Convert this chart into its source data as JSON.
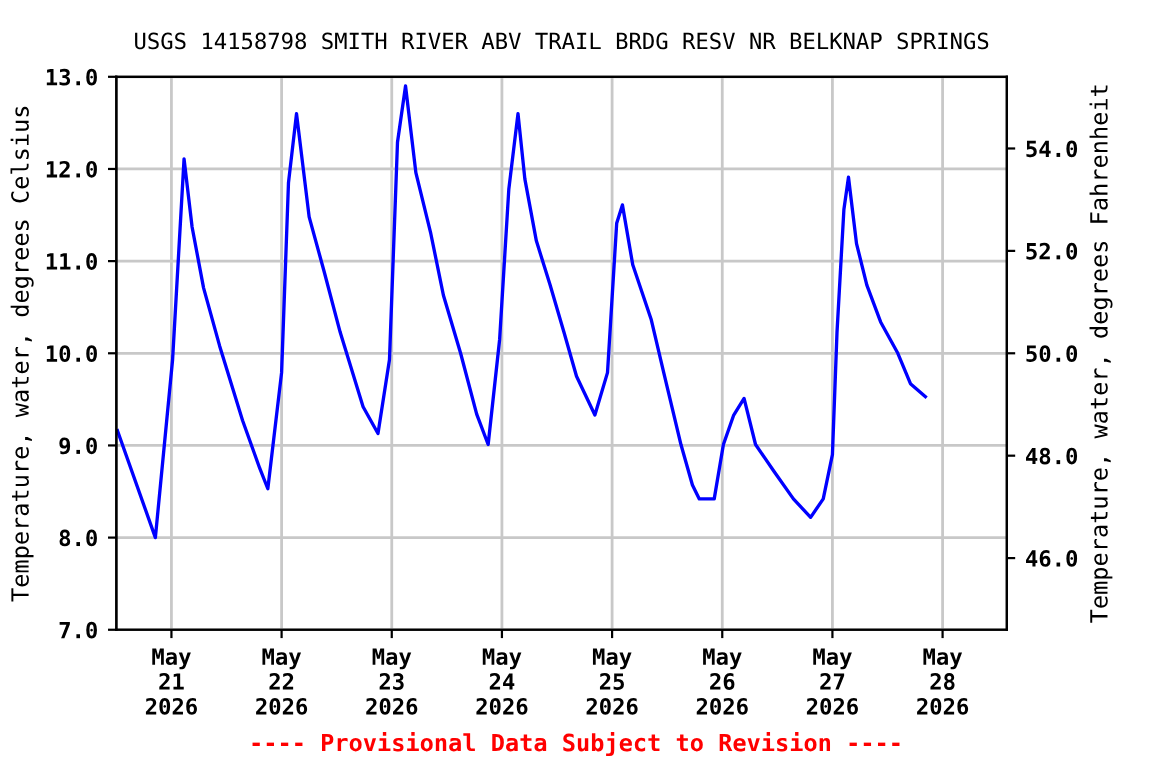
{
  "chart_data": {
    "type": "line",
    "title": "USGS 14158798 SMITH RIVER ABV TRAIL BRDG RESV NR BELKNAP SPRINGS",
    "ylabel": "Temperature, water, degrees Celsius",
    "y2label": "Temperature, water, degrees Fahrenheit",
    "annotations": [
      "---- Provisional Data Subject to Revision ----"
    ],
    "grid": true,
    "legend": false,
    "marker": "none",
    "line_style": "solid",
    "xlim": [
      "2026-05-20T12:00",
      "2026-05-28T14:00"
    ],
    "xticks": [
      {
        "value": "2026-05-21",
        "label": "May\n21\n2026"
      },
      {
        "value": "2026-05-22",
        "label": "May\n22\n2026"
      },
      {
        "value": "2026-05-23",
        "label": "May\n23\n2026"
      },
      {
        "value": "2026-05-24",
        "label": "May\n24\n2026"
      },
      {
        "value": "2026-05-25",
        "label": "May\n25\n2026"
      },
      {
        "value": "2026-05-26",
        "label": "May\n26\n2026"
      },
      {
        "value": "2026-05-27",
        "label": "May\n27\n2026"
      },
      {
        "value": "2026-05-28",
        "label": "May\n28\n2026"
      }
    ],
    "ylim": [
      7.0,
      13.0
    ],
    "yticks": [
      {
        "value": 7,
        "label": "7.0"
      },
      {
        "value": 8,
        "label": "8.0"
      },
      {
        "value": 9,
        "label": "9.0"
      },
      {
        "value": 10,
        "label": "10.0"
      },
      {
        "value": 11,
        "label": "11.0"
      },
      {
        "value": 12,
        "label": "12.0"
      },
      {
        "value": 13,
        "label": "13.0"
      }
    ],
    "y2lim": [
      44.6,
      55.4
    ],
    "y2ticks": [
      {
        "value": 46,
        "label": "46.0"
      },
      {
        "value": 48,
        "label": "48.0"
      },
      {
        "value": 50,
        "label": "50.0"
      },
      {
        "value": 52,
        "label": "52.0"
      },
      {
        "value": 54,
        "label": "54.0"
      }
    ],
    "series": [
      {
        "color": "#0000ff",
        "x": [
          "2026-05-20T12:15",
          "2026-05-20T20:30",
          "2026-05-21T00:15",
          "2026-05-21T02:45",
          "2026-05-21T04:30",
          "2026-05-21T07:00",
          "2026-05-21T10:30",
          "2026-05-21T15:30",
          "2026-05-21T19:15",
          "2026-05-21T21:00",
          "2026-05-22T00:00",
          "2026-05-22T01:30",
          "2026-05-22T03:15",
          "2026-05-22T06:00",
          "2026-05-22T09:15",
          "2026-05-22T12:45",
          "2026-05-22T17:45",
          "2026-05-22T21:00",
          "2026-05-22T23:30",
          "2026-05-23T01:15",
          "2026-05-23T03:00",
          "2026-05-23T05:15",
          "2026-05-23T08:30",
          "2026-05-23T11:15",
          "2026-05-23T15:00",
          "2026-05-23T18:30",
          "2026-05-23T21:00",
          "2026-05-23T23:30",
          "2026-05-24T01:30",
          "2026-05-24T03:30",
          "2026-05-24T05:00",
          "2026-05-24T07:30",
          "2026-05-24T10:30",
          "2026-05-24T13:30",
          "2026-05-24T16:15",
          "2026-05-24T20:15",
          "2026-05-24T23:00",
          "2026-05-25T01:00",
          "2026-05-25T02:15",
          "2026-05-25T04:30",
          "2026-05-25T08:30",
          "2026-05-25T11:15",
          "2026-05-25T15:00",
          "2026-05-25T17:30",
          "2026-05-25T19:00",
          "2026-05-25T22:15",
          "2026-05-26T00:15",
          "2026-05-26T02:30",
          "2026-05-26T04:45",
          "2026-05-26T07:15",
          "2026-05-26T11:15",
          "2026-05-26T15:30",
          "2026-05-26T19:15",
          "2026-05-26T22:00",
          "2026-05-27T00:00",
          "2026-05-27T01:00",
          "2026-05-27T02:30",
          "2026-05-27T03:30",
          "2026-05-27T05:15",
          "2026-05-27T07:30",
          "2026-05-27T10:30",
          "2026-05-27T14:15",
          "2026-05-27T17:00",
          "2026-05-27T20:15"
        ],
        "values": [
          9.16,
          8.0,
          9.93,
          12.11,
          11.37,
          10.71,
          10.08,
          9.27,
          8.75,
          8.53,
          9.79,
          11.85,
          12.6,
          11.48,
          10.89,
          10.23,
          9.42,
          9.13,
          9.93,
          12.29,
          12.9,
          11.96,
          11.3,
          10.63,
          10.0,
          9.34,
          9.01,
          10.15,
          11.78,
          12.6,
          11.89,
          11.22,
          10.74,
          10.23,
          9.75,
          9.33,
          9.79,
          11.41,
          11.61,
          10.96,
          10.37,
          9.79,
          9.01,
          8.57,
          8.42,
          8.42,
          9.01,
          9.33,
          9.51,
          9.01,
          8.72,
          8.42,
          8.22,
          8.42,
          8.9,
          10.23,
          11.56,
          11.91,
          11.19,
          10.74,
          10.34,
          10.0,
          9.67,
          9.53
        ]
      }
    ]
  }
}
